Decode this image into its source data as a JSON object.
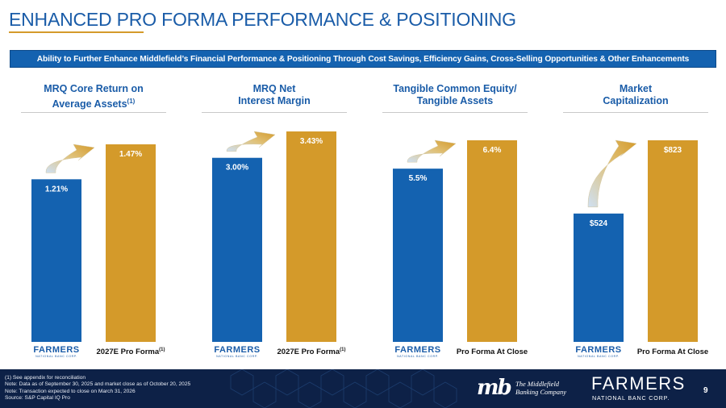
{
  "title": "ENHANCED PRO FORMA PERFORMANCE & POSITIONING",
  "banner": "Ability to Further Enhance Middlefield’s Financial Performance & Positioning Through Cost Savings, Efficiency Gains, Cross-Selling Opportunities & Other Enhancements",
  "colors": {
    "blue": "#1462b0",
    "gold": "#d49a2a",
    "navy": "#0d2147"
  },
  "logo_text": {
    "farmers_word": "FARMERS",
    "farmers_sub": "NATIONAL BANC CORP."
  },
  "chart_data": [
    {
      "type": "bar",
      "title_line1": "MRQ Core Return on",
      "title_line2": "Average Assets",
      "title_sup": "(1)",
      "categories": [
        "",
        "2027E Pro Forma"
      ],
      "category_sup": [
        "",
        "(1)"
      ],
      "values": [
        1.21,
        1.47
      ],
      "labels": [
        "1.21%",
        "1.47%"
      ]
    },
    {
      "type": "bar",
      "title_line1": "MRQ Net",
      "title_line2": "Interest Margin",
      "title_sup": "",
      "categories": [
        "",
        "2027E Pro Forma"
      ],
      "category_sup": [
        "",
        "(1)"
      ],
      "values": [
        3.0,
        3.43
      ],
      "labels": [
        "3.00%",
        "3.43%"
      ]
    },
    {
      "type": "bar",
      "title_line1": "Tangible Common Equity/",
      "title_line2": "Tangible Assets",
      "title_sup": "",
      "categories": [
        "",
        "Pro Forma At Close"
      ],
      "category_sup": [
        "",
        ""
      ],
      "values": [
        5.5,
        6.4
      ],
      "labels": [
        "5.5%",
        "6.4%"
      ]
    },
    {
      "type": "bar",
      "title_line1": "Market",
      "title_line2": "Capitalization",
      "title_sup": "",
      "categories": [
        "",
        "Pro Forma At Close"
      ],
      "category_sup": [
        "",
        ""
      ],
      "values": [
        524,
        823
      ],
      "labels": [
        "$524",
        "$823"
      ]
    }
  ],
  "footnotes": [
    "(1) See appendix for reconciliation",
    "Note: Data as of September 30, 2025 and market close as of October 20, 2025",
    "Note: Transaction expected to close on March 31, 2026",
    "Source: S&P Capital IQ Pro"
  ],
  "mb_logo": {
    "mark": "mb",
    "line1": "The Middlefield",
    "line2": "Banking Company"
  },
  "page_number": "9"
}
